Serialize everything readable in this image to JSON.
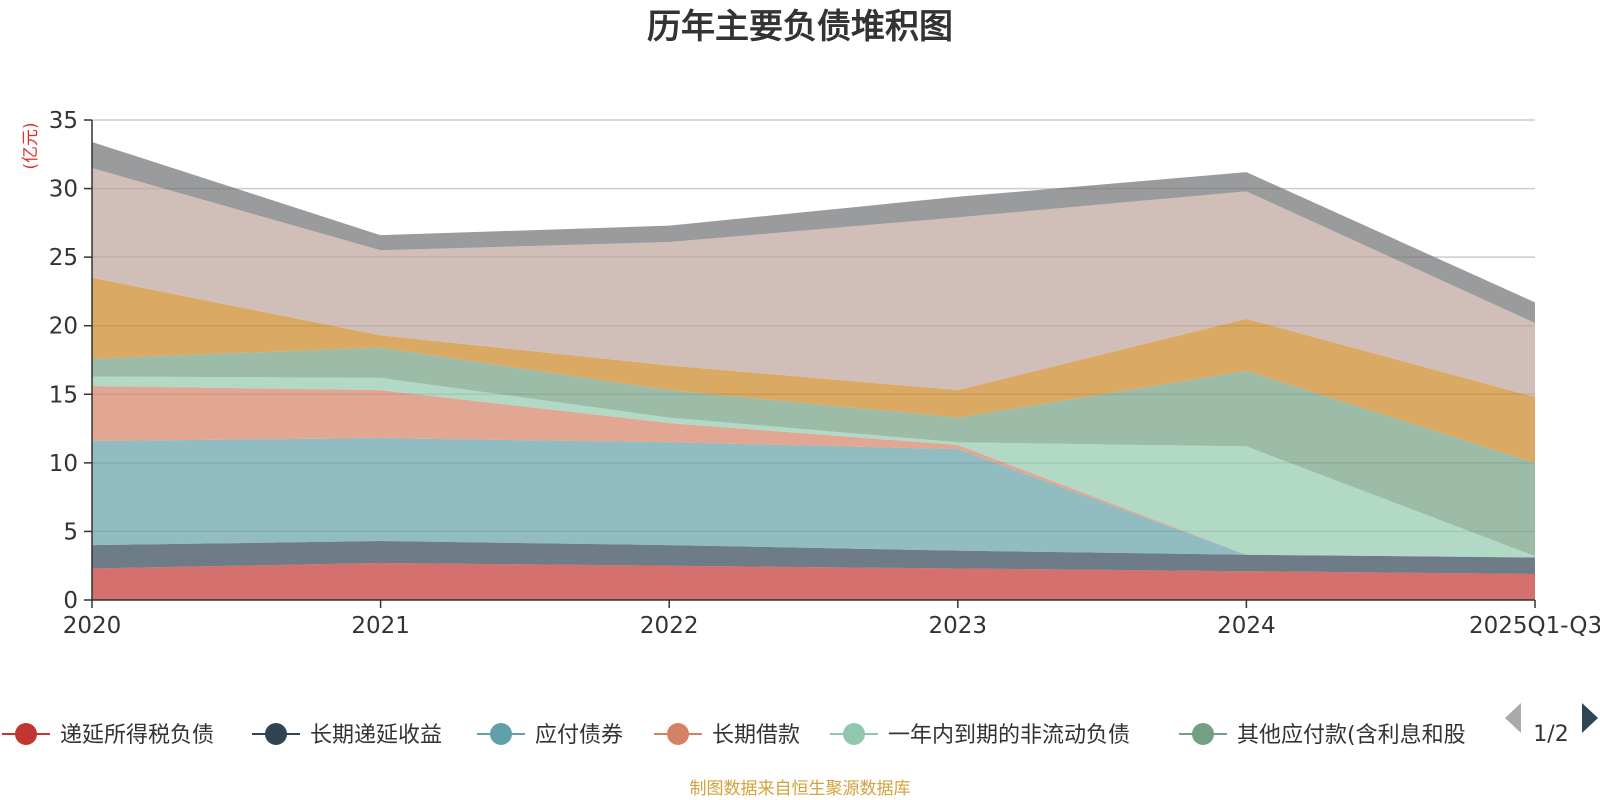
{
  "chart_data": {
    "type": "area",
    "stacked": true,
    "title": "历年主要负债堆积图",
    "unit_label": "(亿元)",
    "categories": [
      "2020",
      "2021",
      "2022",
      "2023",
      "2024",
      "2025Q1-Q3"
    ],
    "ylim": [
      0,
      35
    ],
    "yticks": [
      0,
      5,
      10,
      15,
      20,
      25,
      30,
      35
    ],
    "grid": true,
    "series": [
      {
        "name": "递延所得税负债",
        "color": "#c23531",
        "values": [
          2.3,
          2.7,
          2.5,
          2.3,
          2.1,
          1.9
        ],
        "legend": true
      },
      {
        "name": "长期递延收益",
        "color": "#2f4554",
        "values": [
          1.7,
          1.6,
          1.5,
          1.3,
          1.2,
          1.2
        ],
        "legend": true
      },
      {
        "name": "应付债券",
        "color": "#61a0a8",
        "values": [
          7.6,
          7.5,
          7.5,
          7.4,
          0,
          0
        ],
        "legend": true
      },
      {
        "name": "长期借款",
        "color": "#d48265",
        "values": [
          4.0,
          3.5,
          1.4,
          0.3,
          0,
          0
        ],
        "legend": true
      },
      {
        "name": "一年内到期的非流动负债",
        "color": "#91c7ae",
        "values": [
          0.7,
          0.9,
          0.4,
          0.2,
          7.9,
          0.1
        ],
        "legend": true
      },
      {
        "name": "其他应付款(含利息和股",
        "color": "#749f83",
        "values": [
          1.3,
          2.2,
          2.0,
          1.8,
          5.5,
          6.8
        ],
        "legend": true
      },
      {
        "name": "series-7",
        "color": "#ca8622",
        "values": [
          5.9,
          0.9,
          1.8,
          2.0,
          3.8,
          4.8
        ],
        "legend": false
      },
      {
        "name": "series-8",
        "color": "#bda29a",
        "values": [
          8.0,
          6.2,
          9.0,
          12.6,
          9.3,
          5.4
        ],
        "legend": false
      },
      {
        "name": "series-9",
        "color": "#6e7074",
        "values": [
          1.9,
          1.1,
          1.2,
          1.5,
          1.4,
          1.5
        ],
        "legend": false
      }
    ],
    "legend_page": "1/2",
    "source": "制图数据来自恒生聚源数据库"
  },
  "icons": {
    "legend_marker": "circle-line-marker",
    "prev_page": "triangle-left-icon",
    "next_page": "triangle-right-icon"
  }
}
